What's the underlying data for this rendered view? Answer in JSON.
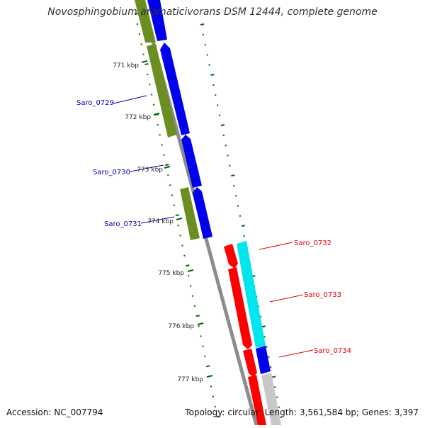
{
  "title": "Novosphingobium aromaticivorans DSM 12444, complete genome",
  "footer": {
    "accession": "Accession: NC_007794",
    "summary": "Topology: circular; Length: 3,561,584 bp; Genes: 3,397"
  },
  "colors": {
    "forward_cds": "#0000ee",
    "reverse_cds": "#6b8e23",
    "forward_cds_right": "#ff0000",
    "reverse_cds_right": "#00e5ee",
    "tick": "#006400",
    "backbone": "#8c8c8c",
    "label_blue": "#0000aa",
    "label_red": "#dd0000"
  },
  "ticks": [
    "771 kbp",
    "772 kbp",
    "773 kbp",
    "774 kbp",
    "775 kbp",
    "776 kbp",
    "777 kbp"
  ],
  "gene_labels": [
    "Saro_0729",
    "Saro_0730",
    "Saro_0731",
    "Saro_0732",
    "Saro_0733",
    "Saro_0734"
  ]
}
